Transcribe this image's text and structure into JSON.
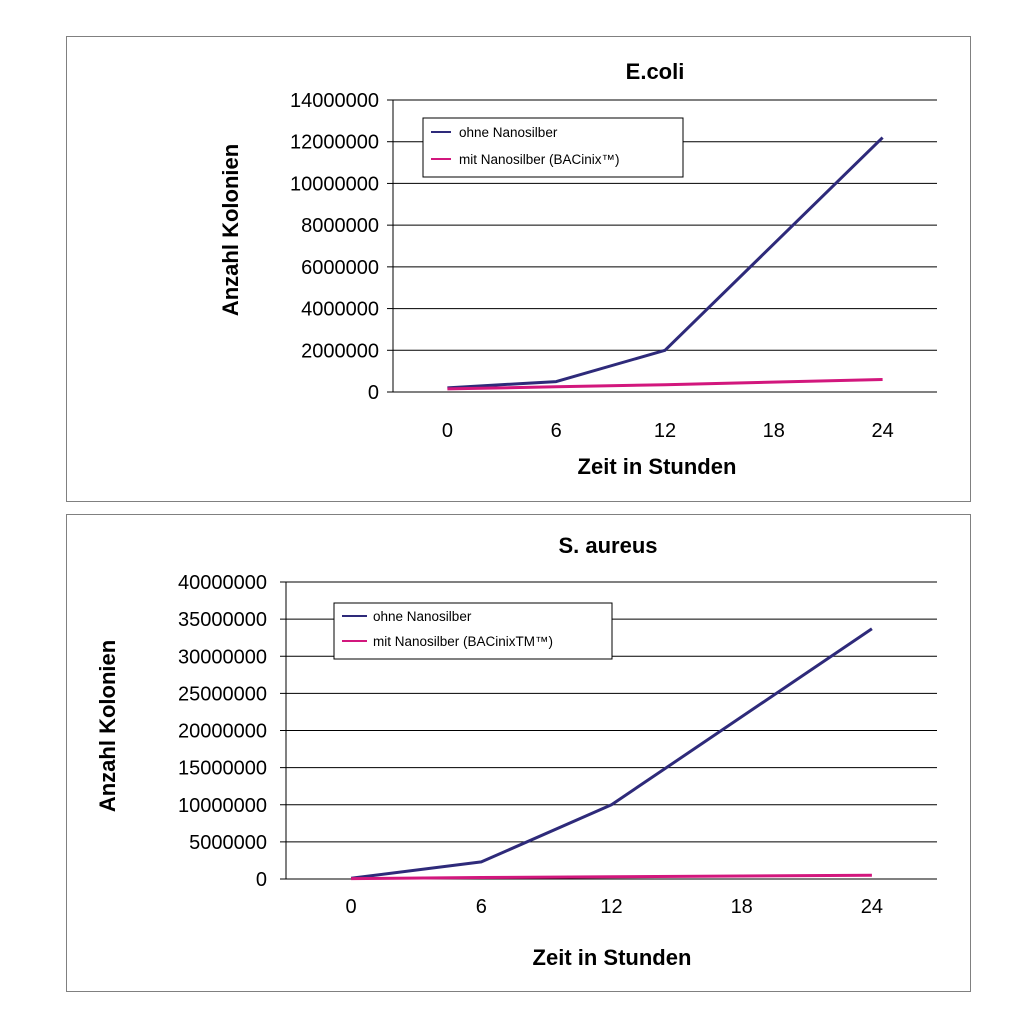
{
  "chart_data": [
    {
      "type": "line",
      "title": "E.coli",
      "xlabel": "Zeit in Stunden",
      "ylabel": "Anzahl Kolonien",
      "categories": [
        "0",
        "6",
        "12",
        "18",
        "24"
      ],
      "yticks": [
        "0",
        "2000000",
        "4000000",
        "6000000",
        "8000000",
        "10000000",
        "12000000",
        "14000000"
      ],
      "ylim": [
        0,
        14000000
      ],
      "grid": true,
      "legend_position": "top-left",
      "series": [
        {
          "name": "ohne Nanosilber",
          "color": "#2e2a7a",
          "values": [
            200000,
            500000,
            2000000,
            null,
            12200000
          ]
        },
        {
          "name": "mit Nanosilber (BACinix™)",
          "color": "#d2177d",
          "values": [
            150000,
            250000,
            350000,
            null,
            600000
          ]
        }
      ]
    },
    {
      "type": "line",
      "title": "S. aureus",
      "xlabel": "Zeit in Stunden",
      "ylabel": "Anzahl Kolonien",
      "categories": [
        "0",
        "6",
        "12",
        "18",
        "24"
      ],
      "yticks": [
        "0",
        "5000000",
        "10000000",
        "15000000",
        "20000000",
        "25000000",
        "30000000",
        "35000000",
        "40000000"
      ],
      "ylim": [
        0,
        40000000
      ],
      "grid": true,
      "legend_position": "top-left",
      "series": [
        {
          "name": "ohne Nanosilber",
          "color": "#2e2a7a",
          "values": [
            100000,
            2300000,
            10000000,
            null,
            33700000
          ]
        },
        {
          "name": "mit Nanosilber (BACinixTM™)",
          "color": "#d2177d",
          "values": [
            50000,
            200000,
            300000,
            null,
            500000
          ]
        }
      ]
    }
  ]
}
